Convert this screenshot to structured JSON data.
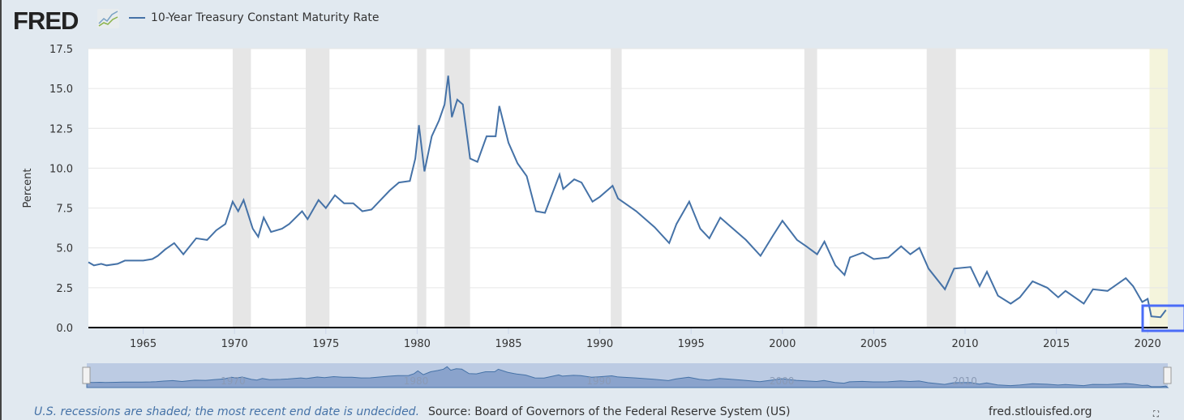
{
  "logo": "FRED",
  "legend_label": "10-Year Treasury Constant Maturity Rate",
  "footer": {
    "note": "U.S. recessions are shaded; the most recent end date is undecided.",
    "source": "Source: Board of Governors of the Federal Reserve System (US)",
    "site": "fred.stlouisfed.org"
  },
  "colors": {
    "line": "#4572a7",
    "recession": "#e6e6e6",
    "recent_recession": "#f4f4dc",
    "highlight_box": "#4a6cf7"
  },
  "chart_data": {
    "type": "line",
    "title": "",
    "ylabel": "Percent",
    "xlabel": "",
    "xlim": [
      1962,
      2021.1
    ],
    "ylim": [
      0,
      17.5
    ],
    "yticks": [
      "0.0",
      "2.5",
      "5.0",
      "7.5",
      "10.0",
      "12.5",
      "15.0",
      "17.5"
    ],
    "xticks": [
      "1965",
      "1970",
      "1975",
      "1980",
      "1985",
      "1990",
      "1995",
      "2000",
      "2005",
      "2010",
      "2015",
      "2020"
    ],
    "navigator_ticks": [
      "1970",
      "1980",
      "1990",
      "2000",
      "2010"
    ],
    "grid": true,
    "legend": "top-left",
    "recessions": [
      [
        1969.9,
        1970.9
      ],
      [
        1973.9,
        1975.2
      ],
      [
        1980.0,
        1980.5
      ],
      [
        1981.5,
        1982.9
      ],
      [
        1990.6,
        1991.2
      ],
      [
        2001.2,
        2001.9
      ],
      [
        2007.9,
        2009.5
      ],
      [
        2020.1,
        2021.1
      ]
    ],
    "series": [
      {
        "name": "10-Year Treasury Constant Maturity Rate",
        "points": [
          [
            1962.0,
            4.1
          ],
          [
            1962.3,
            3.9
          ],
          [
            1962.7,
            4.0
          ],
          [
            1963.0,
            3.9
          ],
          [
            1963.6,
            4.0
          ],
          [
            1964.0,
            4.2
          ],
          [
            1964.6,
            4.2
          ],
          [
            1965.0,
            4.2
          ],
          [
            1965.5,
            4.3
          ],
          [
            1965.8,
            4.5
          ],
          [
            1966.2,
            4.9
          ],
          [
            1966.7,
            5.3
          ],
          [
            1967.2,
            4.6
          ],
          [
            1967.9,
            5.6
          ],
          [
            1968.5,
            5.5
          ],
          [
            1969.0,
            6.1
          ],
          [
            1969.5,
            6.5
          ],
          [
            1969.9,
            7.9
          ],
          [
            1970.2,
            7.3
          ],
          [
            1970.5,
            8.0
          ],
          [
            1971.0,
            6.2
          ],
          [
            1971.3,
            5.7
          ],
          [
            1971.6,
            6.9
          ],
          [
            1972.0,
            6.0
          ],
          [
            1972.6,
            6.2
          ],
          [
            1973.0,
            6.5
          ],
          [
            1973.7,
            7.3
          ],
          [
            1974.0,
            6.8
          ],
          [
            1974.6,
            8.0
          ],
          [
            1975.0,
            7.5
          ],
          [
            1975.5,
            8.3
          ],
          [
            1976.0,
            7.8
          ],
          [
            1976.5,
            7.8
          ],
          [
            1977.0,
            7.3
          ],
          [
            1977.5,
            7.4
          ],
          [
            1978.0,
            8.0
          ],
          [
            1978.5,
            8.6
          ],
          [
            1979.0,
            9.1
          ],
          [
            1979.6,
            9.2
          ],
          [
            1979.9,
            10.6
          ],
          [
            1980.1,
            12.7
          ],
          [
            1980.4,
            9.8
          ],
          [
            1980.8,
            12.0
          ],
          [
            1981.2,
            13.0
          ],
          [
            1981.5,
            14.0
          ],
          [
            1981.7,
            15.8
          ],
          [
            1981.9,
            13.2
          ],
          [
            1982.2,
            14.3
          ],
          [
            1982.5,
            14.0
          ],
          [
            1982.9,
            10.6
          ],
          [
            1983.3,
            10.4
          ],
          [
            1983.8,
            12.0
          ],
          [
            1984.3,
            12.0
          ],
          [
            1984.5,
            13.9
          ],
          [
            1985.0,
            11.6
          ],
          [
            1985.5,
            10.3
          ],
          [
            1986.0,
            9.5
          ],
          [
            1986.5,
            7.3
          ],
          [
            1987.0,
            7.2
          ],
          [
            1987.8,
            9.6
          ],
          [
            1988.0,
            8.7
          ],
          [
            1988.6,
            9.3
          ],
          [
            1989.0,
            9.1
          ],
          [
            1989.6,
            7.9
          ],
          [
            1990.0,
            8.2
          ],
          [
            1990.7,
            8.9
          ],
          [
            1991.0,
            8.1
          ],
          [
            1992.0,
            7.3
          ],
          [
            1993.0,
            6.3
          ],
          [
            1993.8,
            5.3
          ],
          [
            1994.2,
            6.5
          ],
          [
            1994.9,
            7.9
          ],
          [
            1995.5,
            6.2
          ],
          [
            1996.0,
            5.6
          ],
          [
            1996.6,
            6.9
          ],
          [
            1997.0,
            6.5
          ],
          [
            1998.0,
            5.5
          ],
          [
            1998.8,
            4.5
          ],
          [
            1999.5,
            5.8
          ],
          [
            2000.0,
            6.7
          ],
          [
            2000.8,
            5.5
          ],
          [
            2001.3,
            5.1
          ],
          [
            2001.9,
            4.6
          ],
          [
            2002.3,
            5.4
          ],
          [
            2002.9,
            3.9
          ],
          [
            2003.4,
            3.3
          ],
          [
            2003.7,
            4.4
          ],
          [
            2004.4,
            4.7
          ],
          [
            2005.0,
            4.3
          ],
          [
            2005.8,
            4.4
          ],
          [
            2006.5,
            5.1
          ],
          [
            2007.0,
            4.6
          ],
          [
            2007.5,
            5.0
          ],
          [
            2008.0,
            3.7
          ],
          [
            2008.9,
            2.4
          ],
          [
            2009.4,
            3.7
          ],
          [
            2010.3,
            3.8
          ],
          [
            2010.8,
            2.6
          ],
          [
            2011.2,
            3.5
          ],
          [
            2011.8,
            2.0
          ],
          [
            2012.5,
            1.5
          ],
          [
            2013.0,
            1.9
          ],
          [
            2013.7,
            2.9
          ],
          [
            2014.5,
            2.5
          ],
          [
            2015.1,
            1.9
          ],
          [
            2015.5,
            2.3
          ],
          [
            2016.5,
            1.5
          ],
          [
            2017.0,
            2.4
          ],
          [
            2017.8,
            2.3
          ],
          [
            2018.8,
            3.1
          ],
          [
            2019.2,
            2.6
          ],
          [
            2019.7,
            1.6
          ],
          [
            2020.0,
            1.8
          ],
          [
            2020.2,
            0.7
          ],
          [
            2020.7,
            0.65
          ],
          [
            2021.0,
            1.1
          ]
        ]
      }
    ]
  }
}
